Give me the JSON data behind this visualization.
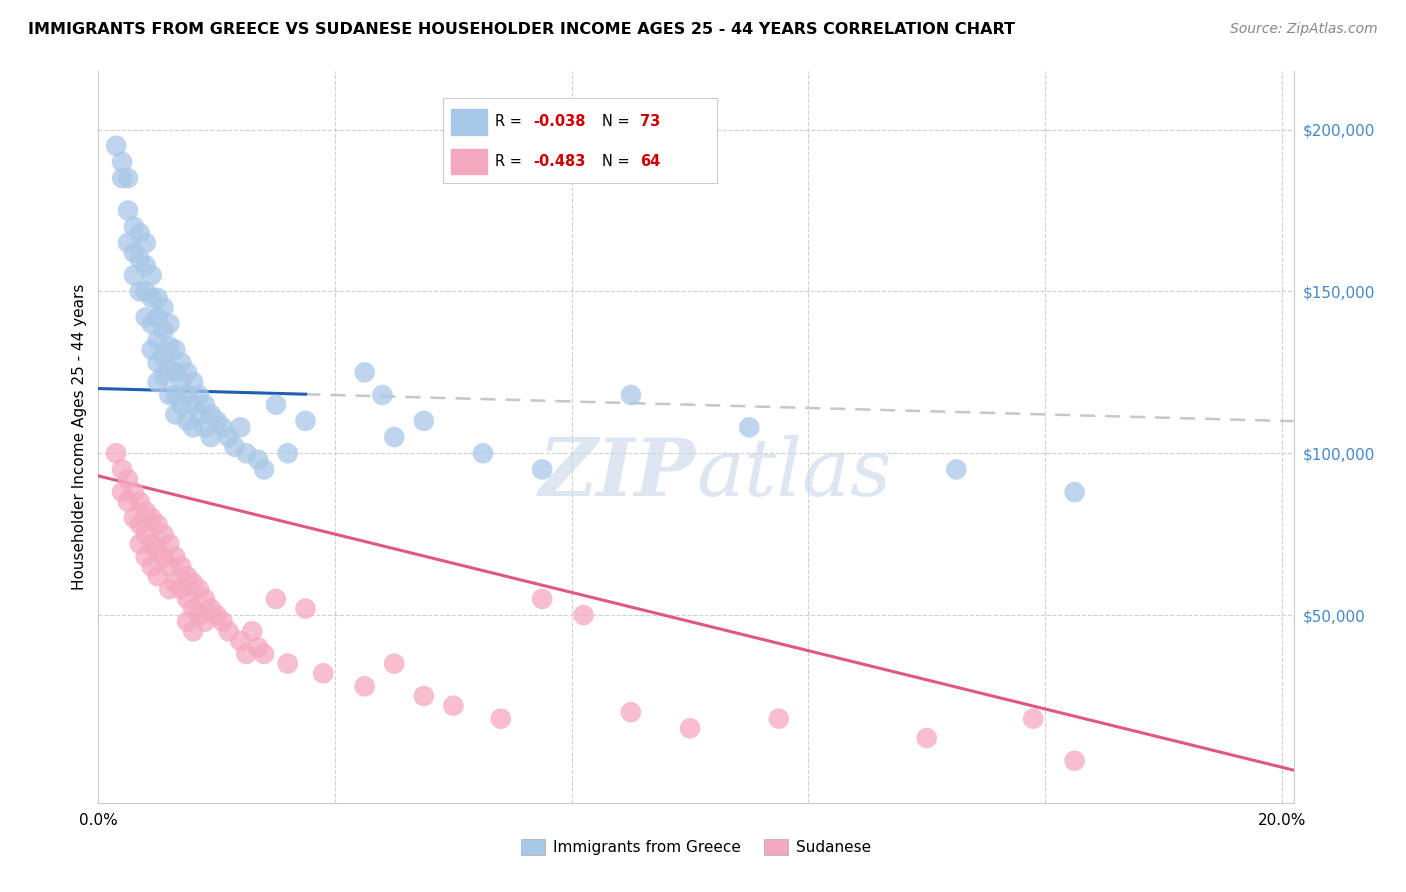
{
  "title": "IMMIGRANTS FROM GREECE VS SUDANESE HOUSEHOLDER INCOME AGES 25 - 44 YEARS CORRELATION CHART",
  "source": "Source: ZipAtlas.com",
  "ylabel": "Householder Income Ages 25 - 44 years",
  "xlim": [
    0.0,
    0.202
  ],
  "ylim": [
    -8000,
    218000
  ],
  "blue_R": "-0.038",
  "blue_N": "73",
  "pink_R": "-0.483",
  "pink_N": "64",
  "blue_color": "#a8c8e8",
  "blue_line_color": "#2060b0",
  "pink_color": "#f4a8c0",
  "pink_line_color": "#e05880",
  "dash_color": "#c0c8d0",
  "watermark_color": "#c8d8e8",
  "blue_scatter_x": [
    0.003,
    0.004,
    0.004,
    0.005,
    0.005,
    0.005,
    0.006,
    0.006,
    0.006,
    0.007,
    0.007,
    0.007,
    0.008,
    0.008,
    0.008,
    0.008,
    0.009,
    0.009,
    0.009,
    0.009,
    0.01,
    0.01,
    0.01,
    0.01,
    0.01,
    0.011,
    0.011,
    0.011,
    0.011,
    0.012,
    0.012,
    0.012,
    0.012,
    0.013,
    0.013,
    0.013,
    0.013,
    0.014,
    0.014,
    0.014,
    0.015,
    0.015,
    0.015,
    0.016,
    0.016,
    0.016,
    0.017,
    0.017,
    0.018,
    0.018,
    0.019,
    0.019,
    0.02,
    0.021,
    0.022,
    0.023,
    0.024,
    0.025,
    0.027,
    0.028,
    0.03,
    0.032,
    0.035,
    0.045,
    0.048,
    0.05,
    0.055,
    0.065,
    0.075,
    0.09,
    0.11,
    0.145,
    0.165
  ],
  "blue_scatter_y": [
    195000,
    190000,
    185000,
    185000,
    175000,
    165000,
    170000,
    162000,
    155000,
    168000,
    160000,
    150000,
    165000,
    158000,
    150000,
    142000,
    155000,
    148000,
    140000,
    132000,
    148000,
    142000,
    135000,
    128000,
    122000,
    145000,
    138000,
    130000,
    124000,
    140000,
    133000,
    126000,
    118000,
    132000,
    125000,
    118000,
    112000,
    128000,
    122000,
    115000,
    125000,
    118000,
    110000,
    122000,
    115000,
    108000,
    118000,
    112000,
    115000,
    108000,
    112000,
    105000,
    110000,
    108000,
    105000,
    102000,
    108000,
    100000,
    98000,
    95000,
    115000,
    100000,
    110000,
    125000,
    118000,
    105000,
    110000,
    100000,
    95000,
    118000,
    108000,
    95000,
    88000
  ],
  "pink_scatter_x": [
    0.003,
    0.004,
    0.004,
    0.005,
    0.005,
    0.006,
    0.006,
    0.007,
    0.007,
    0.007,
    0.008,
    0.008,
    0.008,
    0.009,
    0.009,
    0.009,
    0.01,
    0.01,
    0.01,
    0.011,
    0.011,
    0.012,
    0.012,
    0.012,
    0.013,
    0.013,
    0.014,
    0.014,
    0.015,
    0.015,
    0.015,
    0.016,
    0.016,
    0.016,
    0.017,
    0.017,
    0.018,
    0.018,
    0.019,
    0.02,
    0.021,
    0.022,
    0.024,
    0.025,
    0.026,
    0.027,
    0.028,
    0.03,
    0.032,
    0.035,
    0.038,
    0.045,
    0.05,
    0.055,
    0.06,
    0.068,
    0.075,
    0.082,
    0.09,
    0.1,
    0.115,
    0.14,
    0.158,
    0.165
  ],
  "pink_scatter_y": [
    100000,
    95000,
    88000,
    92000,
    85000,
    88000,
    80000,
    85000,
    78000,
    72000,
    82000,
    75000,
    68000,
    80000,
    72000,
    65000,
    78000,
    70000,
    62000,
    75000,
    68000,
    72000,
    65000,
    58000,
    68000,
    60000,
    65000,
    58000,
    62000,
    55000,
    48000,
    60000,
    52000,
    45000,
    58000,
    50000,
    55000,
    48000,
    52000,
    50000,
    48000,
    45000,
    42000,
    38000,
    45000,
    40000,
    38000,
    55000,
    35000,
    52000,
    32000,
    28000,
    35000,
    25000,
    22000,
    18000,
    55000,
    50000,
    20000,
    15000,
    18000,
    12000,
    18000,
    5000
  ]
}
